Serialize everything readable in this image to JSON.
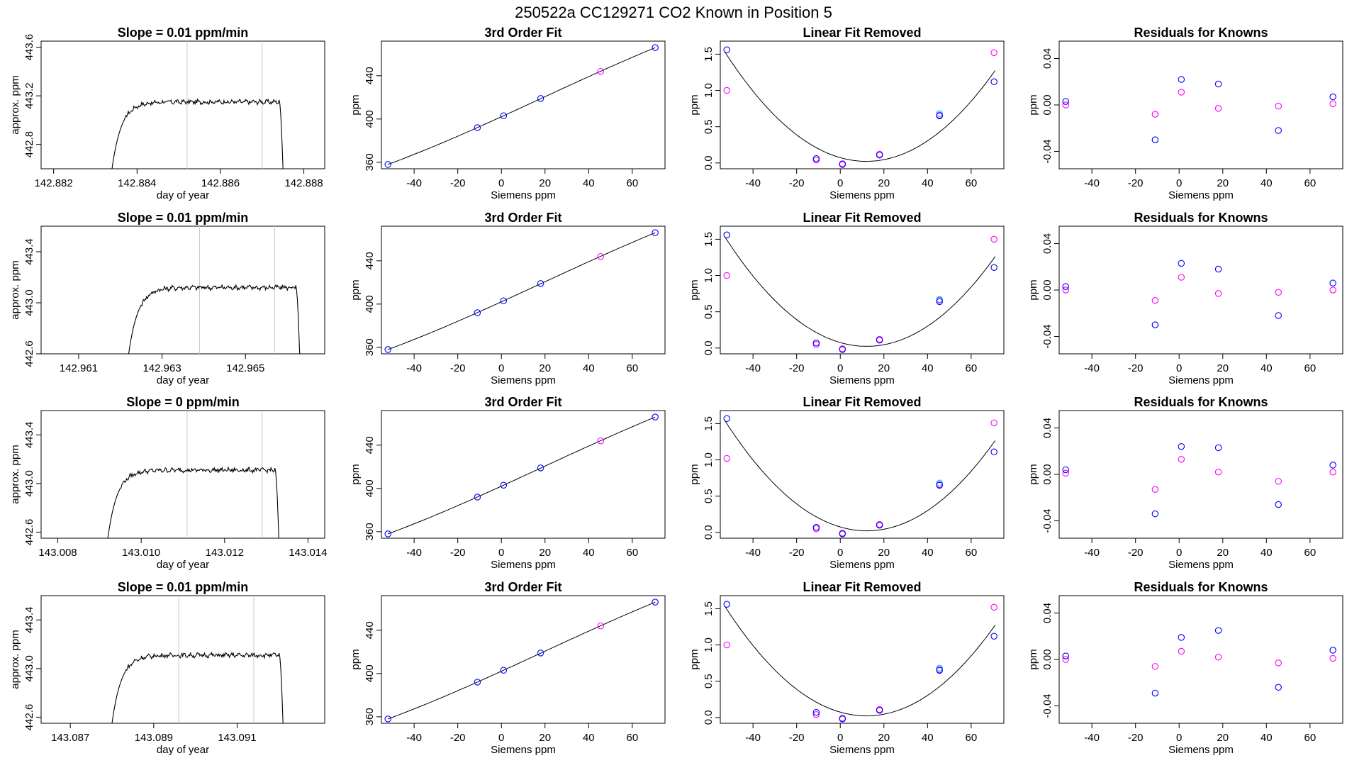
{
  "page_title": "250522a      CC129271    CO2 Known in Position  5",
  "colors": {
    "trace": "#000000",
    "blue": "#0000ff",
    "magenta": "#ff00ff",
    "cyan": "#00bfff",
    "grid": "#c8c8c8"
  },
  "panel_titles": {
    "fit": "3rd Order Fit",
    "removed": "Linear Fit Removed",
    "residuals": "Residuals for Knowns"
  },
  "axis_labels": {
    "doy_x": "day of year",
    "doy_y": "approx. ppm",
    "siemens_x": "Siemens ppm",
    "ppm_y": "ppm"
  },
  "chart_data": [
    {
      "row": 0,
      "slope": {
        "type": "line",
        "title": "Slope =  0.01  ppm/min",
        "xlim": [
          142.8817,
          142.8885
        ],
        "ylim": [
          442.6,
          443.65
        ],
        "xticks": [
          142.882,
          142.884,
          142.886,
          142.888
        ],
        "yticks": [
          442.8,
          443.2,
          443.6
        ],
        "xtick_labels": [
          "142.882",
          "142.884",
          "142.886",
          "142.888"
        ],
        "ytick_labels": [
          "442.8",
          "443.2",
          "443.6"
        ],
        "vlines": [
          142.8852,
          142.887
        ],
        "trace": {
          "x0": 142.8834,
          "x1": 142.8875,
          "rise": 0.0005,
          "fall": 0.0001,
          "base": 442.6,
          "plateau": 443.15
        }
      },
      "fit": {
        "type": "scatter",
        "title": "3rd Order Fit",
        "xlim": [
          -55,
          75
        ],
        "ylim": [
          354,
          472
        ],
        "xticks": [
          -40,
          -20,
          0,
          20,
          40,
          60
        ],
        "yticks": [
          360,
          400,
          440
        ],
        "xtick_labels": [
          "-40",
          "-20",
          "0",
          "20",
          "40",
          "60"
        ],
        "ytick_labels": [
          "360",
          "400",
          "440"
        ],
        "points": [
          [
            -52,
            358
          ],
          [
            -11,
            392
          ],
          [
            1,
            403
          ],
          [
            18,
            419
          ],
          [
            45.5,
            444
          ],
          [
            70.5,
            466
          ]
        ]
      },
      "removed": {
        "type": "scatter",
        "title": "Linear Fit Removed",
        "xlim": [
          -55,
          75
        ],
        "ylim": [
          -0.08,
          1.68
        ],
        "xticks": [
          -40,
          -20,
          0,
          20,
          40,
          60
        ],
        "yticks": [
          0.0,
          0.5,
          1.0,
          1.5
        ],
        "xtick_labels": [
          "-40",
          "-20",
          "0",
          "20",
          "40",
          "60"
        ],
        "ytick_labels": [
          "0.0",
          "0.5",
          "1.0",
          "1.5"
        ],
        "blue": [
          [
            -52,
            1.56
          ],
          [
            -11,
            0.06
          ],
          [
            1,
            -0.02
          ],
          [
            18,
            0.11
          ],
          [
            45.5,
            0.65
          ],
          [
            70.5,
            1.12
          ]
        ],
        "cyan": [
          [
            45.5,
            0.68
          ]
        ],
        "magenta": [
          [
            -52,
            1.0
          ],
          [
            -11,
            0.04
          ],
          [
            1,
            -0.01
          ],
          [
            18,
            0.12
          ],
          [
            45.5,
            0.66
          ],
          [
            70.5,
            1.52
          ]
        ]
      },
      "residuals": {
        "type": "scatter",
        "title": "Residuals for Knowns",
        "xlim": [
          -55,
          75
        ],
        "ylim": [
          -0.055,
          0.055
        ],
        "xticks": [
          -40,
          -20,
          0,
          20,
          40,
          60
        ],
        "yticks": [
          -0.04,
          0.0,
          0.04
        ],
        "xtick_labels": [
          "-40",
          "-20",
          "0",
          "20",
          "40",
          "60"
        ],
        "ytick_labels": [
          "-0.04",
          "0.00",
          "0.04"
        ],
        "blue": [
          [
            -52,
            0.003
          ],
          [
            -11,
            -0.03
          ],
          [
            1,
            0.022
          ],
          [
            18,
            0.018
          ],
          [
            45.5,
            -0.022
          ],
          [
            70.5,
            0.007
          ]
        ],
        "magenta": [
          [
            -52,
            0.0
          ],
          [
            -11,
            -0.008
          ],
          [
            1,
            0.011
          ],
          [
            18,
            -0.003
          ],
          [
            45.5,
            -0.001
          ],
          [
            70.5,
            0.001
          ]
        ]
      }
    },
    {
      "row": 1,
      "slope": {
        "type": "line",
        "title": "Slope =  0.01  ppm/min",
        "xlim": [
          142.9601,
          142.9669
        ],
        "ylim": [
          442.6,
          443.6
        ],
        "xticks": [
          142.961,
          142.963,
          142.965
        ],
        "yticks": [
          442.6,
          443.0,
          443.4
        ],
        "xtick_labels": [
          "142.961",
          "142.963",
          "142.965"
        ],
        "ytick_labels": [
          "442.6",
          "443.0",
          "443.4"
        ],
        "vlines": [
          142.9639,
          142.9657
        ],
        "trace": {
          "x0": 142.9622,
          "x1": 142.9663,
          "rise": 0.0005,
          "fall": 0.0001,
          "base": 442.6,
          "plateau": 443.12
        }
      },
      "fit": {
        "type": "scatter",
        "title": "3rd Order Fit",
        "xlim": [
          -55,
          75
        ],
        "ylim": [
          354,
          472
        ],
        "xticks": [
          -40,
          -20,
          0,
          20,
          40,
          60
        ],
        "yticks": [
          360,
          400,
          440
        ],
        "xtick_labels": [
          "-40",
          "-20",
          "0",
          "20",
          "40",
          "60"
        ],
        "ytick_labels": [
          "360",
          "400",
          "440"
        ],
        "points": [
          [
            -52,
            358
          ],
          [
            -11,
            392
          ],
          [
            1,
            403
          ],
          [
            18,
            419
          ],
          [
            45.5,
            444
          ],
          [
            70.5,
            466
          ]
        ]
      },
      "removed": {
        "type": "scatter",
        "title": "Linear Fit Removed",
        "xlim": [
          -55,
          75
        ],
        "ylim": [
          -0.08,
          1.68
        ],
        "xticks": [
          -40,
          -20,
          0,
          20,
          40,
          60
        ],
        "yticks": [
          0.0,
          0.5,
          1.0,
          1.5
        ],
        "xtick_labels": [
          "-40",
          "-20",
          "0",
          "20",
          "40",
          "60"
        ],
        "ytick_labels": [
          "0.0",
          "0.5",
          "1.0",
          "1.5"
        ],
        "blue": [
          [
            -52,
            1.56
          ],
          [
            -11,
            0.07
          ],
          [
            1,
            -0.02
          ],
          [
            18,
            0.11
          ],
          [
            45.5,
            0.64
          ],
          [
            70.5,
            1.11
          ]
        ],
        "cyan": [
          [
            45.5,
            0.67
          ]
        ],
        "magenta": [
          [
            -52,
            1.0
          ],
          [
            -11,
            0.05
          ],
          [
            1,
            -0.01
          ],
          [
            18,
            0.12
          ],
          [
            45.5,
            0.66
          ],
          [
            70.5,
            1.5
          ]
        ]
      },
      "residuals": {
        "type": "scatter",
        "title": "Residuals for Knowns",
        "xlim": [
          -55,
          75
        ],
        "ylim": [
          -0.055,
          0.055
        ],
        "xticks": [
          -40,
          -20,
          0,
          20,
          40,
          60
        ],
        "yticks": [
          -0.04,
          0.0,
          0.04
        ],
        "xtick_labels": [
          "-40",
          "-20",
          "0",
          "20",
          "40",
          "60"
        ],
        "ytick_labels": [
          "-0.04",
          "0.00",
          "0.04"
        ],
        "blue": [
          [
            -52,
            0.003
          ],
          [
            -11,
            -0.03
          ],
          [
            1,
            0.023
          ],
          [
            18,
            0.018
          ],
          [
            45.5,
            -0.022
          ],
          [
            70.5,
            0.006
          ]
        ],
        "magenta": [
          [
            -52,
            0.0
          ],
          [
            -11,
            -0.009
          ],
          [
            1,
            0.011
          ],
          [
            18,
            -0.003
          ],
          [
            45.5,
            -0.002
          ],
          [
            70.5,
            0.0
          ]
        ]
      }
    },
    {
      "row": 2,
      "slope": {
        "type": "line",
        "title": "Slope =  0  ppm/min",
        "xlim": [
          143.0076,
          143.0144
        ],
        "ylim": [
          442.55,
          443.6
        ],
        "xticks": [
          143.008,
          143.01,
          143.012,
          143.014
        ],
        "yticks": [
          442.6,
          443.0,
          443.4
        ],
        "xtick_labels": [
          "143.008",
          "143.010",
          "143.012",
          "143.014"
        ],
        "ytick_labels": [
          "442.6",
          "443.0",
          "443.4"
        ],
        "vlines": [
          143.0111,
          143.0129
        ],
        "trace": {
          "x0": 143.0092,
          "x1": 143.0133,
          "rise": 0.0005,
          "fall": 0.0001,
          "base": 442.55,
          "plateau": 443.11
        }
      },
      "fit": {
        "type": "scatter",
        "title": "3rd Order Fit",
        "xlim": [
          -55,
          75
        ],
        "ylim": [
          354,
          472
        ],
        "xticks": [
          -40,
          -20,
          0,
          20,
          40,
          60
        ],
        "yticks": [
          360,
          400,
          440
        ],
        "xtick_labels": [
          "-40",
          "-20",
          "0",
          "20",
          "40",
          "60"
        ],
        "ytick_labels": [
          "360",
          "400",
          "440"
        ],
        "points": [
          [
            -52,
            358
          ],
          [
            -11,
            392
          ],
          [
            1,
            403
          ],
          [
            18,
            419
          ],
          [
            45.5,
            444
          ],
          [
            70.5,
            466
          ]
        ]
      },
      "removed": {
        "type": "scatter",
        "title": "Linear Fit Removed",
        "xlim": [
          -55,
          75
        ],
        "ylim": [
          -0.08,
          1.68
        ],
        "xticks": [
          -40,
          -20,
          0,
          20,
          40,
          60
        ],
        "yticks": [
          0.0,
          0.5,
          1.0,
          1.5
        ],
        "xtick_labels": [
          "-40",
          "-20",
          "0",
          "20",
          "40",
          "60"
        ],
        "ytick_labels": [
          "0.0",
          "0.5",
          "1.0",
          "1.5"
        ],
        "blue": [
          [
            -52,
            1.57
          ],
          [
            -11,
            0.07
          ],
          [
            1,
            -0.02
          ],
          [
            18,
            0.1
          ],
          [
            45.5,
            0.65
          ],
          [
            70.5,
            1.11
          ]
        ],
        "cyan": [
          [
            45.5,
            0.68
          ]
        ],
        "magenta": [
          [
            -52,
            1.02
          ],
          [
            -11,
            0.05
          ],
          [
            1,
            -0.01
          ],
          [
            18,
            0.11
          ],
          [
            45.5,
            0.66
          ],
          [
            70.5,
            1.51
          ]
        ]
      },
      "residuals": {
        "type": "scatter",
        "title": "Residuals for Knowns",
        "xlim": [
          -55,
          75
        ],
        "ylim": [
          -0.055,
          0.055
        ],
        "xticks": [
          -40,
          -20,
          0,
          20,
          40,
          60
        ],
        "yticks": [
          -0.04,
          0.0,
          0.04
        ],
        "xtick_labels": [
          "-40",
          "-20",
          "0",
          "20",
          "40",
          "60"
        ],
        "ytick_labels": [
          "-0.04",
          "0.00",
          "0.04"
        ],
        "blue": [
          [
            -52,
            0.004
          ],
          [
            -11,
            -0.034
          ],
          [
            1,
            0.024
          ],
          [
            18,
            0.023
          ],
          [
            45.5,
            -0.026
          ],
          [
            70.5,
            0.008
          ]
        ],
        "magenta": [
          [
            -52,
            0.001
          ],
          [
            -11,
            -0.013
          ],
          [
            1,
            0.013
          ],
          [
            18,
            0.002
          ],
          [
            45.5,
            -0.006
          ],
          [
            70.5,
            0.002
          ]
        ]
      }
    },
    {
      "row": 3,
      "slope": {
        "type": "line",
        "title": "Slope =  0.01  ppm/min",
        "xlim": [
          143.0863,
          143.0931
        ],
        "ylim": [
          442.55,
          443.6
        ],
        "xticks": [
          143.087,
          143.089,
          143.091
        ],
        "yticks": [
          442.6,
          443.0,
          443.4
        ],
        "xtick_labels": [
          "143.087",
          "143.089",
          "143.091"
        ],
        "ytick_labels": [
          "442.6",
          "443.0",
          "443.4"
        ],
        "vlines": [
          143.0896,
          143.0914
        ],
        "trace": {
          "x0": 143.088,
          "x1": 143.0921,
          "rise": 0.0005,
          "fall": 0.0001,
          "base": 442.55,
          "plateau": 443.11
        }
      },
      "fit": {
        "type": "scatter",
        "title": "3rd Order Fit",
        "xlim": [
          -55,
          75
        ],
        "ylim": [
          354,
          472
        ],
        "xticks": [
          -40,
          -20,
          0,
          20,
          40,
          60
        ],
        "yticks": [
          360,
          400,
          440
        ],
        "xtick_labels": [
          "-40",
          "-20",
          "0",
          "20",
          "40",
          "60"
        ],
        "ytick_labels": [
          "360",
          "400",
          "440"
        ],
        "points": [
          [
            -52,
            358
          ],
          [
            -11,
            392
          ],
          [
            1,
            403
          ],
          [
            18,
            419
          ],
          [
            45.5,
            444
          ],
          [
            70.5,
            466
          ]
        ]
      },
      "removed": {
        "type": "scatter",
        "title": "Linear Fit Removed",
        "xlim": [
          -55,
          75
        ],
        "ylim": [
          -0.08,
          1.68
        ],
        "xticks": [
          -40,
          -20,
          0,
          20,
          40,
          60
        ],
        "yticks": [
          0.0,
          0.5,
          1.0,
          1.5
        ],
        "xtick_labels": [
          "-40",
          "-20",
          "0",
          "20",
          "40",
          "60"
        ],
        "ytick_labels": [
          "0.0",
          "0.5",
          "1.0",
          "1.5"
        ],
        "blue": [
          [
            -52,
            1.56
          ],
          [
            -11,
            0.07
          ],
          [
            1,
            -0.02
          ],
          [
            18,
            0.1
          ],
          [
            45.5,
            0.65
          ],
          [
            70.5,
            1.12
          ]
        ],
        "cyan": [
          [
            45.5,
            0.68
          ]
        ],
        "magenta": [
          [
            -52,
            1.0
          ],
          [
            -11,
            0.04
          ],
          [
            1,
            -0.01
          ],
          [
            18,
            0.11
          ],
          [
            45.5,
            0.66
          ],
          [
            70.5,
            1.52
          ]
        ]
      },
      "residuals": {
        "type": "scatter",
        "title": "Residuals for Knowns",
        "xlim": [
          -55,
          75
        ],
        "ylim": [
          -0.055,
          0.055
        ],
        "xticks": [
          -40,
          -20,
          0,
          20,
          40,
          60
        ],
        "yticks": [
          -0.04,
          0.0,
          0.04
        ],
        "xtick_labels": [
          "-40",
          "-20",
          "0",
          "20",
          "40",
          "60"
        ],
        "ytick_labels": [
          "-0.04",
          "0.00",
          "0.04"
        ],
        "blue": [
          [
            -52,
            0.003
          ],
          [
            -11,
            -0.029
          ],
          [
            1,
            0.019
          ],
          [
            18,
            0.025
          ],
          [
            45.5,
            -0.024
          ],
          [
            70.5,
            0.008
          ]
        ],
        "magenta": [
          [
            -52,
            0.0
          ],
          [
            -11,
            -0.006
          ],
          [
            1,
            0.007
          ],
          [
            18,
            0.002
          ],
          [
            45.5,
            -0.003
          ],
          [
            70.5,
            0.001
          ]
        ]
      }
    }
  ]
}
